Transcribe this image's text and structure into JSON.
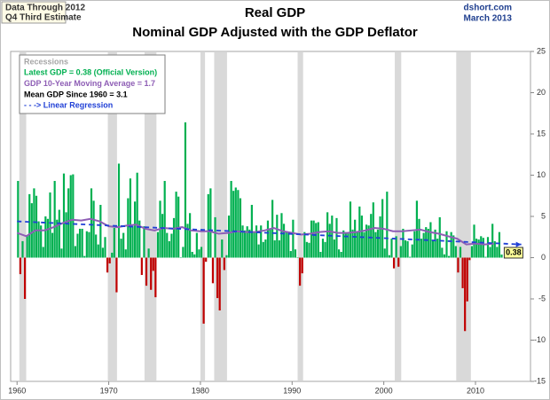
{
  "chart_data": {
    "type": "bar",
    "title": "Real GDP",
    "subtitle": "Nominal GDP Adjusted with the GDP Deflator",
    "note_lines": [
      "Data Through 2012",
      "Q4 Third Estimate"
    ],
    "source_lines": [
      "dshort.com",
      "March 2013"
    ],
    "xlim": [
      1959.3,
      2016
    ],
    "xticks": [
      1960,
      1970,
      1980,
      1990,
      2000,
      2010
    ],
    "ylim": [
      -15,
      25
    ],
    "yticks": [
      -15,
      -10,
      -5,
      0,
      5,
      10,
      15,
      20,
      25
    ],
    "grid": false,
    "recessions": {
      "name": "Recessions",
      "color": "#d9d9d9",
      "spans": [
        [
          1960.25,
          1961.0
        ],
        [
          1969.9,
          1970.9
        ],
        [
          1973.9,
          1975.2
        ],
        [
          1980.0,
          1980.5
        ],
        [
          1981.5,
          1982.9
        ],
        [
          1990.6,
          1991.2
        ],
        [
          2001.2,
          2001.9
        ],
        [
          2007.9,
          2009.5
        ]
      ]
    },
    "mean_note": "Mean GDP  Since 1960 = 3.1",
    "series": [
      {
        "type": "bar",
        "name": "Latest GDP = 0.38  (Official Version)",
        "color": "#00b050",
        "negative_color": "#c00000",
        "x": [
          1960,
          1960.25,
          1960.5,
          1960.75,
          1961,
          1961.25,
          1961.5,
          1961.75,
          1962,
          1962.25,
          1962.5,
          1962.75,
          1963,
          1963.25,
          1963.5,
          1963.75,
          1964,
          1964.25,
          1964.5,
          1964.75,
          1965,
          1965.25,
          1965.5,
          1965.75,
          1966,
          1966.25,
          1966.5,
          1966.75,
          1967,
          1967.25,
          1967.5,
          1967.75,
          1968,
          1968.25,
          1968.5,
          1968.75,
          1969,
          1969.25,
          1969.5,
          1969.75,
          1970,
          1970.25,
          1970.5,
          1970.75,
          1971,
          1971.25,
          1971.5,
          1971.75,
          1972,
          1972.25,
          1972.5,
          1972.75,
          1973,
          1973.25,
          1973.5,
          1973.75,
          1974,
          1974.25,
          1974.5,
          1974.75,
          1975,
          1975.25,
          1975.5,
          1975.75,
          1976,
          1976.25,
          1976.5,
          1976.75,
          1977,
          1977.25,
          1977.5,
          1977.75,
          1978,
          1978.25,
          1978.5,
          1978.75,
          1979,
          1979.25,
          1979.5,
          1979.75,
          1980,
          1980.25,
          1980.5,
          1980.75,
          1981,
          1981.25,
          1981.5,
          1981.75,
          1982,
          1982.25,
          1982.5,
          1982.75,
          1983,
          1983.25,
          1983.5,
          1983.75,
          1984,
          1984.25,
          1984.5,
          1984.75,
          1985,
          1985.25,
          1985.5,
          1985.75,
          1986,
          1986.25,
          1986.5,
          1986.75,
          1987,
          1987.25,
          1987.5,
          1987.75,
          1988,
          1988.25,
          1988.5,
          1988.75,
          1989,
          1989.25,
          1989.5,
          1989.75,
          1990,
          1990.25,
          1990.5,
          1990.75,
          1991,
          1991.25,
          1991.5,
          1991.75,
          1992,
          1992.25,
          1992.5,
          1992.75,
          1993,
          1993.25,
          1993.5,
          1993.75,
          1994,
          1994.25,
          1994.5,
          1994.75,
          1995,
          1995.25,
          1995.5,
          1995.75,
          1996,
          1996.25,
          1996.5,
          1996.75,
          1997,
          1997.25,
          1997.5,
          1997.75,
          1998,
          1998.25,
          1998.5,
          1998.75,
          1999,
          1999.25,
          1999.5,
          1999.75,
          2000,
          2000.25,
          2000.5,
          2000.75,
          2001,
          2001.25,
          2001.5,
          2001.75,
          2002,
          2002.25,
          2002.5,
          2002.75,
          2003,
          2003.25,
          2003.5,
          2003.75,
          2004,
          2004.25,
          2004.5,
          2004.75,
          2005,
          2005.25,
          2005.5,
          2005.75,
          2006,
          2006.25,
          2006.5,
          2006.75,
          2007,
          2007.25,
          2007.5,
          2007.75,
          2008,
          2008.25,
          2008.5,
          2008.75,
          2009,
          2009.25,
          2009.5,
          2009.75,
          2010,
          2010.25,
          2010.5,
          2010.75,
          2011,
          2011.25,
          2011.5,
          2011.75,
          2012,
          2012.25,
          2012.5,
          2012.75
        ],
        "values": [
          9.3,
          -2.0,
          2.0,
          -5.0,
          2.7,
          7.7,
          6.6,
          8.4,
          7.5,
          4.4,
          3.9,
          1.3,
          5.0,
          4.7,
          7.9,
          3.0,
          9.3,
          4.6,
          5.8,
          1.1,
          10.2,
          5.5,
          8.4,
          10.0,
          10.1,
          1.4,
          2.9,
          3.5,
          3.5,
          0.2,
          3.2,
          3.1,
          8.4,
          6.9,
          2.8,
          1.6,
          6.4,
          1.2,
          2.5,
          -1.8,
          -0.7,
          0.6,
          3.6,
          -4.2,
          11.4,
          2.3,
          3.0,
          1.0,
          7.2,
          9.6,
          3.8,
          6.8,
          10.3,
          4.5,
          -2.1,
          3.8,
          -3.4,
          1.1,
          -3.9,
          -1.6,
          -4.8,
          3.1,
          6.9,
          5.3,
          9.3,
          3.0,
          2.0,
          2.9,
          4.8,
          8.0,
          7.4,
          0.0,
          1.3,
          16.4,
          4.1,
          5.4,
          0.7,
          0.4,
          3.0,
          1.0,
          1.3,
          -8.0,
          -0.5,
          7.7,
          8.4,
          -3.1,
          4.9,
          -4.9,
          -6.4,
          2.2,
          -1.5,
          0.3,
          5.1,
          9.3,
          8.1,
          8.5,
          8.2,
          7.2,
          3.9,
          3.3,
          3.8,
          3.4,
          6.4,
          3.1,
          3.9,
          1.6,
          3.9,
          1.9,
          2.2,
          4.5,
          3.5,
          7.0,
          2.1,
          5.2,
          2.1,
          5.4,
          4.1,
          3.1,
          3.0,
          0.8,
          4.6,
          1.0,
          0.0,
          -3.4,
          -1.9,
          3.1,
          1.9,
          1.8,
          4.5,
          4.5,
          4.2,
          4.3,
          0.7,
          2.3,
          1.9,
          5.5,
          4.1,
          5.1,
          2.2,
          4.8,
          1.0,
          0.7,
          3.3,
          3.0,
          2.9,
          6.8,
          3.4,
          4.6,
          3.1,
          6.2,
          5.1,
          3.1,
          4.0,
          3.9,
          5.3,
          6.7,
          3.1,
          3.4,
          5.0,
          7.1,
          1.1,
          8.0,
          0.3,
          2.3,
          -1.3,
          2.6,
          -1.1,
          1.4,
          3.5,
          2.1,
          2.0,
          0.1,
          1.6,
          3.2,
          6.9,
          4.7,
          2.3,
          3.0,
          3.7,
          3.5,
          4.3,
          2.1,
          3.4,
          2.3,
          4.9,
          1.2,
          0.4,
          3.2,
          0.2,
          3.1,
          2.7,
          1.4,
          -1.8,
          1.3,
          -3.7,
          -8.9,
          -5.3,
          -0.3,
          1.4,
          4.0,
          2.3,
          2.2,
          2.6,
          2.4,
          0.1,
          2.5,
          1.3,
          4.1,
          2.0,
          1.3,
          3.1,
          0.38
        ]
      },
      {
        "type": "line",
        "name": "GDP 10-Year Moving Average = 1.7",
        "color": "#8e5eb5",
        "dashed": false,
        "x": [
          1960,
          1961,
          1962,
          1963,
          1964,
          1965,
          1966,
          1967,
          1968,
          1969,
          1970,
          1971,
          1972,
          1973,
          1974,
          1975,
          1976,
          1977,
          1978,
          1979,
          1980,
          1981,
          1982,
          1983,
          1984,
          1985,
          1986,
          1987,
          1988,
          1989,
          1990,
          1991,
          1992,
          1993,
          1994,
          1995,
          1996,
          1997,
          1998,
          1999,
          2000,
          2001,
          2002,
          2003,
          2004,
          2005,
          2006,
          2007,
          2008,
          2009,
          2010,
          2011,
          2012
        ],
        "values": [
          3.0,
          2.6,
          3.3,
          3.3,
          3.7,
          4.2,
          4.6,
          4.5,
          4.7,
          4.4,
          3.8,
          3.7,
          3.9,
          4.0,
          3.5,
          3.3,
          3.6,
          3.5,
          3.7,
          3.3,
          3.2,
          3.2,
          2.9,
          3.0,
          3.2,
          3.1,
          3.1,
          3.3,
          3.6,
          3.2,
          3.0,
          2.8,
          2.9,
          3.1,
          3.2,
          3.0,
          3.0,
          3.1,
          3.3,
          3.6,
          3.5,
          3.2,
          3.2,
          3.3,
          3.4,
          3.1,
          2.9,
          2.6,
          2.3,
          1.6,
          1.7,
          1.6,
          1.7
        ]
      },
      {
        "type": "line",
        "name": "- - -> Linear Regression",
        "color": "#1f3fd6",
        "dashed": true,
        "x": [
          1960,
          2015
        ],
        "values": [
          4.4,
          1.6
        ]
      }
    ]
  }
}
